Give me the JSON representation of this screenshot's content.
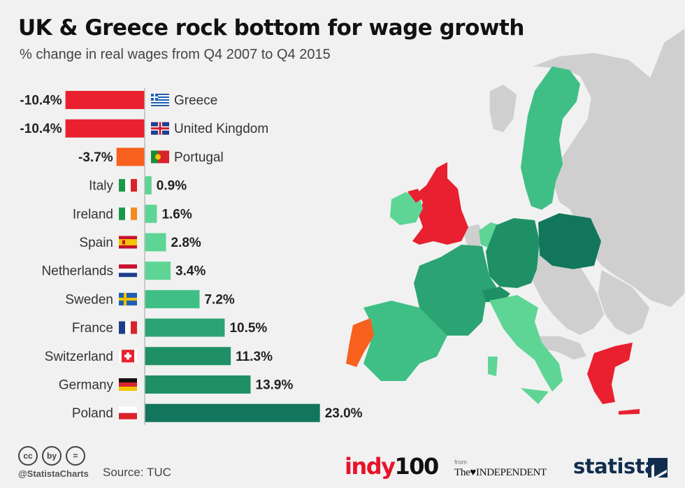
{
  "header": {
    "title": "UK & Greece rock bottom for wage growth",
    "subtitle": "% change in real wages from Q4 2007 to Q4 2015"
  },
  "footer": {
    "handle": "@StatistaCharts",
    "source": "Source: TUC",
    "indy_logo_a": "indy",
    "indy_logo_b": "100",
    "from": "from",
    "independent_logo": "The♥INDEPENDENT",
    "statista_logo": "statista",
    "cc_icons": [
      "cc",
      "by",
      "="
    ]
  },
  "colors": {
    "negative_strong": "#e8202f",
    "negative_mild": "#f8601e",
    "positive_scale": [
      "#5ed595",
      "#3fbf86",
      "#2ca372",
      "#1f9066",
      "#12765c"
    ],
    "map_neutral": "#cfcfcf",
    "background": "#f1f1f1"
  },
  "chart_data": {
    "type": "bar",
    "orientation": "horizontal",
    "title": "UK & Greece rock bottom for wage growth",
    "subtitle": "% change in real wages from Q4 2007 to Q4 2015",
    "categories": [
      "Greece",
      "United Kingdom",
      "Portugal",
      "Italy",
      "Ireland",
      "Spain",
      "Netherlands",
      "Sweden",
      "France",
      "Switzerland",
      "Germany",
      "Poland"
    ],
    "values": [
      -10.4,
      -10.4,
      -3.7,
      0.9,
      1.6,
      2.8,
      3.4,
      7.2,
      10.5,
      11.3,
      13.9,
      23.0
    ],
    "value_labels": [
      "-10.4%",
      "-10.4%",
      "-3.7%",
      "0.9%",
      "1.6%",
      "2.8%",
      "3.4%",
      "7.2%",
      "10.5%",
      "11.3%",
      "13.9%",
      "23.0%"
    ],
    "flags": [
      "greece-flag",
      "uk-flag",
      "portugal-flag",
      "italy-flag",
      "ireland-flag",
      "spain-flag",
      "netherlands-flag",
      "sweden-flag",
      "france-flag",
      "switzerland-flag",
      "germany-flag",
      "poland-flag"
    ],
    "bar_colors": [
      "#e8202f",
      "#e8202f",
      "#f8601e",
      "#5ed595",
      "#5ed595",
      "#5ed595",
      "#5ed595",
      "#3fbf86",
      "#2ca372",
      "#1f9066",
      "#1f9066",
      "#12765c"
    ],
    "xlabel": "",
    "ylabel": "",
    "grid": false,
    "legend": "none"
  }
}
